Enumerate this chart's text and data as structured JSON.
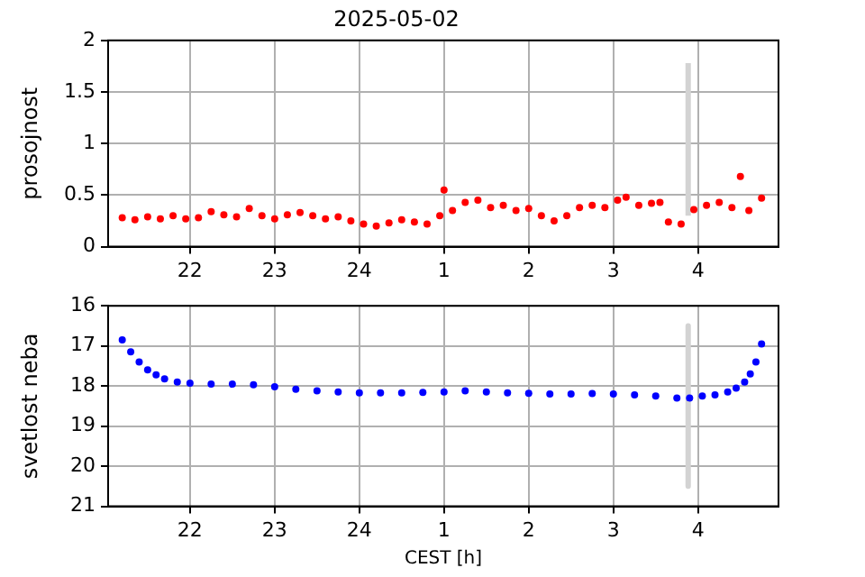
{
  "chart_data": [
    {
      "type": "scatter",
      "title": "2025-05-02",
      "ylabel": "prosojnost",
      "xlim": [
        "2025-05-02T21:02",
        "2025-05-03T04:57"
      ],
      "ylim": [
        0,
        2
      ],
      "yticks": [
        0,
        0.5,
        1,
        1.5,
        2
      ],
      "xticks": [
        {
          "value": "2025-05-02T22:00",
          "label": "22"
        },
        {
          "value": "2025-05-02T23:00",
          "label": "23"
        },
        {
          "value": "2025-05-03T00:00",
          "label": "24"
        },
        {
          "value": "2025-05-03T01:00",
          "label": "1"
        },
        {
          "value": "2025-05-03T02:00",
          "label": "2"
        },
        {
          "value": "2025-05-03T03:00",
          "label": "3"
        },
        {
          "value": "2025-05-03T04:00",
          "label": "4"
        }
      ],
      "grid": true,
      "marker": "circle",
      "series": [
        {
          "color": "#ff0000",
          "x": [
            "2025-05-02T21:12",
            "2025-05-02T21:21",
            "2025-05-02T21:30",
            "2025-05-02T21:39",
            "2025-05-02T21:48",
            "2025-05-02T21:57",
            "2025-05-02T22:06",
            "2025-05-02T22:15",
            "2025-05-02T22:24",
            "2025-05-02T22:33",
            "2025-05-02T22:42",
            "2025-05-02T22:51",
            "2025-05-02T23:00",
            "2025-05-02T23:09",
            "2025-05-02T23:18",
            "2025-05-02T23:27",
            "2025-05-02T23:36",
            "2025-05-02T23:45",
            "2025-05-02T23:54",
            "2025-05-03T00:03",
            "2025-05-03T00:12",
            "2025-05-03T00:21",
            "2025-05-03T00:30",
            "2025-05-03T00:39",
            "2025-05-03T00:48",
            "2025-05-03T00:57",
            "2025-05-03T01:00",
            "2025-05-03T01:06",
            "2025-05-03T01:15",
            "2025-05-03T01:24",
            "2025-05-03T01:33",
            "2025-05-03T01:42",
            "2025-05-03T01:51",
            "2025-05-03T02:00",
            "2025-05-03T02:09",
            "2025-05-03T02:18",
            "2025-05-03T02:27",
            "2025-05-03T02:36",
            "2025-05-03T02:45",
            "2025-05-03T02:54",
            "2025-05-03T03:03",
            "2025-05-03T03:09",
            "2025-05-03T03:18",
            "2025-05-03T03:27",
            "2025-05-03T03:33",
            "2025-05-03T03:39",
            "2025-05-03T03:48",
            "2025-05-03T03:57",
            "2025-05-03T04:06",
            "2025-05-03T04:15",
            "2025-05-03T04:24",
            "2025-05-03T04:30",
            "2025-05-03T04:36",
            "2025-05-03T04:45"
          ],
          "values": [
            0.28,
            0.26,
            0.29,
            0.27,
            0.3,
            0.27,
            0.28,
            0.34,
            0.31,
            0.29,
            0.37,
            0.3,
            0.27,
            0.31,
            0.33,
            0.3,
            0.27,
            0.29,
            0.25,
            0.22,
            0.2,
            0.23,
            0.26,
            0.24,
            0.22,
            0.3,
            0.55,
            0.35,
            0.43,
            0.45,
            0.38,
            0.4,
            0.35,
            0.37,
            0.3,
            0.25,
            0.3,
            0.38,
            0.4,
            0.38,
            0.45,
            0.48,
            0.4,
            0.42,
            0.43,
            0.24,
            0.22,
            0.36,
            0.4,
            0.43,
            0.38,
            0.68,
            0.35,
            0.47
          ]
        },
        {
          "type": "line",
          "marker": "none",
          "color": "#d3d3d3",
          "x": [
            "2025-05-03T03:53",
            "2025-05-03T03:53"
          ],
          "values": [
            0.3,
            1.78
          ]
        }
      ]
    },
    {
      "type": "scatter",
      "ylabel": "svetlost neba",
      "xlabel": "CEST [h]",
      "xlim": [
        "2025-05-02T21:02",
        "2025-05-03T04:57"
      ],
      "ylim": [
        21,
        16
      ],
      "yticks": [
        16,
        17,
        18,
        19,
        20,
        21
      ],
      "xticks": [
        {
          "value": "2025-05-02T22:00",
          "label": "22"
        },
        {
          "value": "2025-05-02T23:00",
          "label": "23"
        },
        {
          "value": "2025-05-03T00:00",
          "label": "24"
        },
        {
          "value": "2025-05-03T01:00",
          "label": "1"
        },
        {
          "value": "2025-05-03T02:00",
          "label": "2"
        },
        {
          "value": "2025-05-03T03:00",
          "label": "3"
        },
        {
          "value": "2025-05-03T04:00",
          "label": "4"
        }
      ],
      "grid": true,
      "marker": "circle",
      "series": [
        {
          "color": "#0000ff",
          "x": [
            "2025-05-02T21:12",
            "2025-05-02T21:18",
            "2025-05-02T21:24",
            "2025-05-02T21:30",
            "2025-05-02T21:36",
            "2025-05-02T21:42",
            "2025-05-02T21:51",
            "2025-05-02T22:00",
            "2025-05-02T22:15",
            "2025-05-02T22:30",
            "2025-05-02T22:45",
            "2025-05-02T23:00",
            "2025-05-02T23:15",
            "2025-05-02T23:30",
            "2025-05-02T23:45",
            "2025-05-03T00:00",
            "2025-05-03T00:15",
            "2025-05-03T00:30",
            "2025-05-03T00:45",
            "2025-05-03T01:00",
            "2025-05-03T01:15",
            "2025-05-03T01:30",
            "2025-05-03T01:45",
            "2025-05-03T02:00",
            "2025-05-03T02:15",
            "2025-05-03T02:30",
            "2025-05-03T02:45",
            "2025-05-03T03:00",
            "2025-05-03T03:15",
            "2025-05-03T03:30",
            "2025-05-03T03:45",
            "2025-05-03T03:54",
            "2025-05-03T04:03",
            "2025-05-03T04:12",
            "2025-05-03T04:21",
            "2025-05-03T04:27",
            "2025-05-03T04:33",
            "2025-05-03T04:37",
            "2025-05-03T04:41",
            "2025-05-03T04:45"
          ],
          "values": [
            16.85,
            17.15,
            17.4,
            17.6,
            17.72,
            17.82,
            17.9,
            17.93,
            17.95,
            17.95,
            17.97,
            18.02,
            18.08,
            18.12,
            18.15,
            18.17,
            18.17,
            18.17,
            18.16,
            18.15,
            18.12,
            18.15,
            18.17,
            18.18,
            18.2,
            18.2,
            18.19,
            18.2,
            18.22,
            18.25,
            18.3,
            18.3,
            18.25,
            18.22,
            18.15,
            18.05,
            17.9,
            17.7,
            17.4,
            16.95
          ]
        },
        {
          "type": "line",
          "marker": "none",
          "color": "#d3d3d3",
          "x": [
            "2025-05-03T03:53",
            "2025-05-03T03:53"
          ],
          "values": [
            16.5,
            20.5
          ]
        }
      ]
    }
  ]
}
